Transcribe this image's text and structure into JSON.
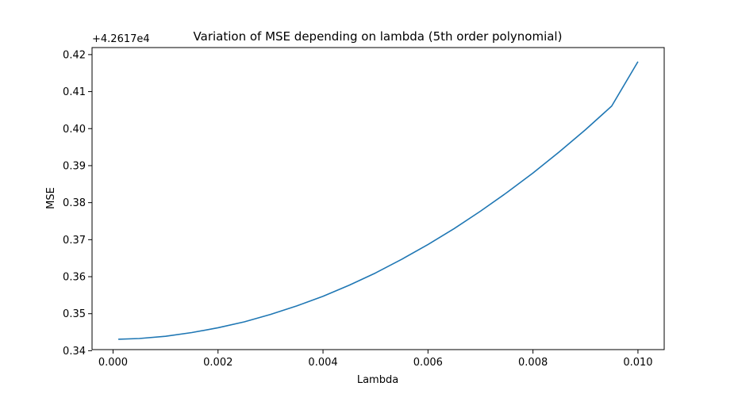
{
  "chart_data": {
    "type": "line",
    "title": "Variation of MSE depending on lambda (5th order polynomial)",
    "xlabel": "Lambda",
    "ylabel": "MSE",
    "y_offset_label": "+4.2617e4",
    "grid": false,
    "line_color": "#1f77b4",
    "xlim": [
      -0.0004,
      0.0105
    ],
    "ylim": [
      0.3403,
      0.4219
    ],
    "xticks": [
      0.0,
      0.002,
      0.004,
      0.006,
      0.008,
      0.01
    ],
    "xtick_labels": [
      "0.000",
      "0.002",
      "0.004",
      "0.006",
      "0.008",
      "0.010"
    ],
    "yticks": [
      0.34,
      0.35,
      0.36,
      0.37,
      0.38,
      0.39,
      0.4,
      0.41,
      0.42
    ],
    "ytick_labels": [
      "0.34",
      "0.35",
      "0.36",
      "0.37",
      "0.38",
      "0.39",
      "0.40",
      "0.41",
      "0.42"
    ],
    "series": [
      {
        "x": [
          0.0001,
          0.0005,
          0.001,
          0.0015,
          0.002,
          0.0025,
          0.003,
          0.0035,
          0.004,
          0.0045,
          0.005,
          0.0055,
          0.006,
          0.0065,
          0.007,
          0.0075,
          0.008,
          0.0085,
          0.009,
          0.0095,
          0.01
        ],
        "values": [
          0.3431,
          0.3433,
          0.3439,
          0.3449,
          0.3462,
          0.3478,
          0.3498,
          0.3521,
          0.3547,
          0.3577,
          0.361,
          0.3647,
          0.3687,
          0.373,
          0.3777,
          0.3827,
          0.388,
          0.3937,
          0.3997,
          0.4061,
          0.4181
        ]
      }
    ]
  }
}
